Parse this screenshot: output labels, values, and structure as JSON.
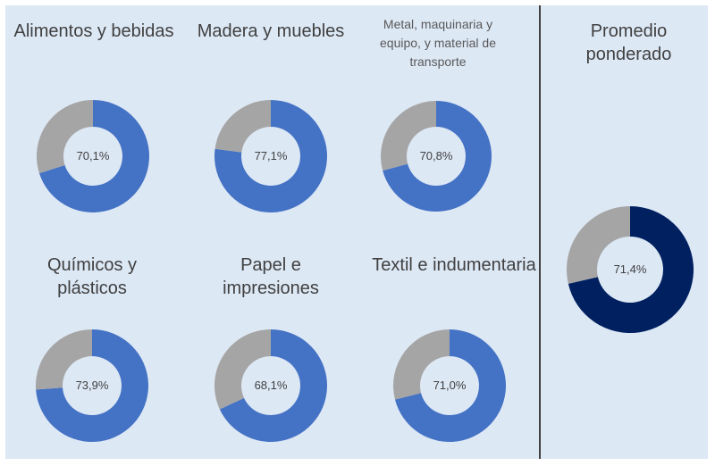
{
  "colors": {
    "value": "#4472c4",
    "rest": "#a5a5a5",
    "average": "#002060",
    "background": "#dde8f5"
  },
  "chart_data": {
    "type": "pie",
    "variant": "donut",
    "charts": [
      {
        "title": "Alimentos y bebidas",
        "value": 70.1,
        "label": "70,1%"
      },
      {
        "title": "Madera y muebles",
        "value": 77.1,
        "label": "77,1%"
      },
      {
        "title": "Metal, maquinaria y equipo, y material de transporte",
        "value": 70.8,
        "label": "70,8%"
      },
      {
        "title": "Químicos y plásticos",
        "value": 73.9,
        "label": "73,9%"
      },
      {
        "title": "Papel e impresiones",
        "value": 68.1,
        "label": "68,1%"
      },
      {
        "title": "Textil e indumentaria",
        "value": 71.0,
        "label": "71,0%"
      },
      {
        "title": "Promedio ponderado",
        "value": 71.4,
        "label": "71,4%"
      }
    ]
  }
}
